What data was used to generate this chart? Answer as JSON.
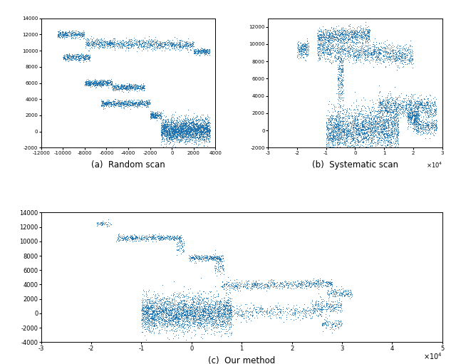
{
  "title_a": "(a)  Random scan",
  "title_b": "(b)  Systematic scan",
  "title_c": "(c)  Our method",
  "dot_color": "#1a6faf",
  "line_color": "#4da6e8",
  "background": "white",
  "panel_a": {
    "xlim": [
      -12000,
      4000
    ],
    "ylim": [
      -2000,
      14000
    ],
    "xticks": [
      -12000,
      -10000,
      -8000,
      -6000,
      -4000,
      -2000,
      0,
      2000,
      4000
    ],
    "yticks": [
      -2000,
      0,
      2000,
      4000,
      6000,
      8000,
      10000,
      12000,
      14000
    ],
    "seed": 42
  },
  "panel_b": {
    "xlim": [
      -30000.0,
      30000.0
    ],
    "ylim": [
      -2000,
      13000
    ],
    "xtick_scale": 10000.0,
    "xtick_vals": [
      -3,
      -2,
      -1,
      0,
      1,
      2,
      3
    ],
    "yticks": [
      -2000,
      0,
      2000,
      4000,
      6000,
      8000,
      10000,
      12000
    ],
    "seed": 123
  },
  "panel_c": {
    "xlim": [
      -30000.0,
      50000.0
    ],
    "ylim": [
      -4000,
      14000
    ],
    "xtick_scale": 10000.0,
    "xtick_vals": [
      -3,
      -2,
      -1,
      0,
      1,
      2,
      3,
      4,
      5
    ],
    "yticks": [
      -4000,
      -2000,
      0,
      2000,
      4000,
      6000,
      8000,
      10000,
      12000,
      14000
    ],
    "seed": 77
  }
}
